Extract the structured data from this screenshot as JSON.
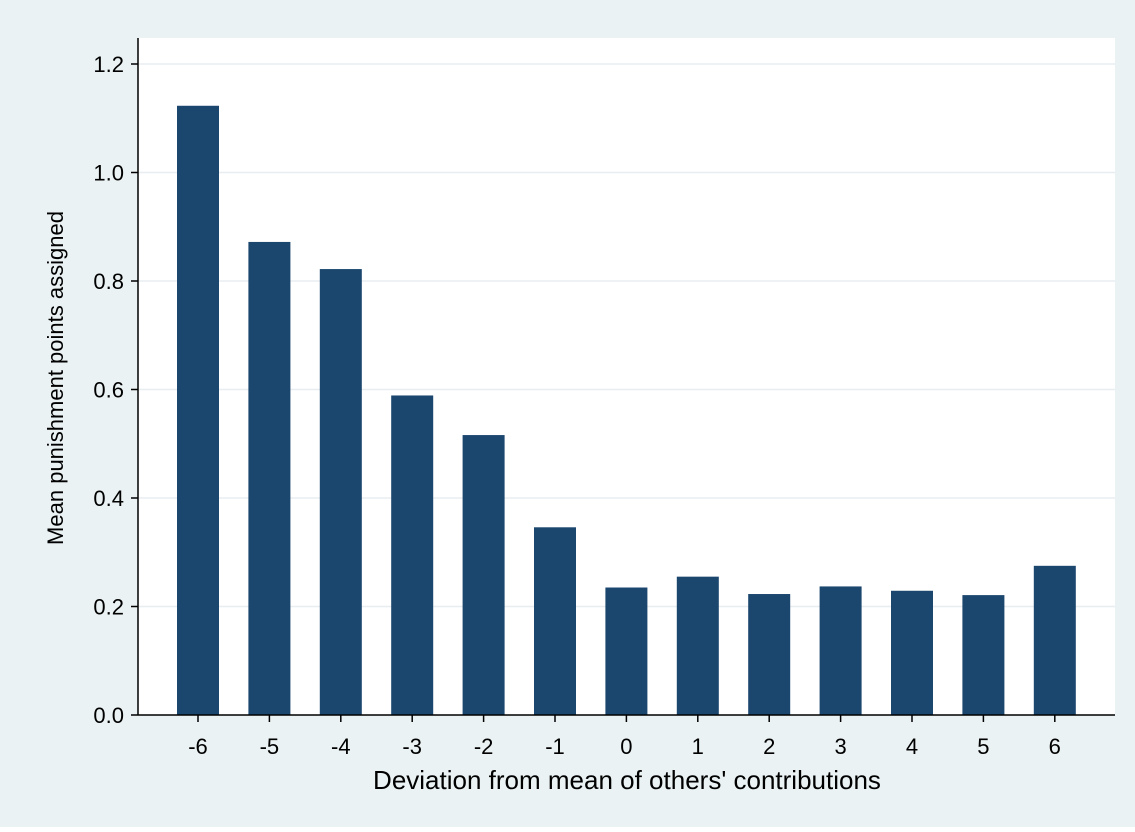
{
  "chart_data": {
    "type": "bar",
    "title": "",
    "xlabel": "Deviation from mean of others' contributions",
    "ylabel": "Mean punishment points assigned",
    "categories": [
      "-6",
      "-5",
      "-4",
      "-3",
      "-2",
      "-1",
      "0",
      "1",
      "2",
      "3",
      "4",
      "5",
      "6"
    ],
    "values": [
      1.123,
      0.872,
      0.822,
      0.589,
      0.516,
      0.346,
      0.235,
      0.255,
      0.223,
      0.237,
      0.229,
      0.221,
      0.275
    ],
    "ylim": [
      0,
      1.2
    ],
    "yticks": [
      0.0,
      0.2,
      0.4,
      0.6,
      0.8,
      1.0,
      1.2
    ],
    "ytick_labels": [
      "0.0",
      "0.2",
      "0.4",
      "0.6",
      "0.8",
      "1.0",
      "1.2"
    ],
    "grid": true,
    "colors": {
      "bar": "#1b466e",
      "outer_background": "#eaf2f3",
      "plot_background": "#ffffff",
      "gridline": "#e8eef0",
      "axis": "#000000"
    }
  }
}
